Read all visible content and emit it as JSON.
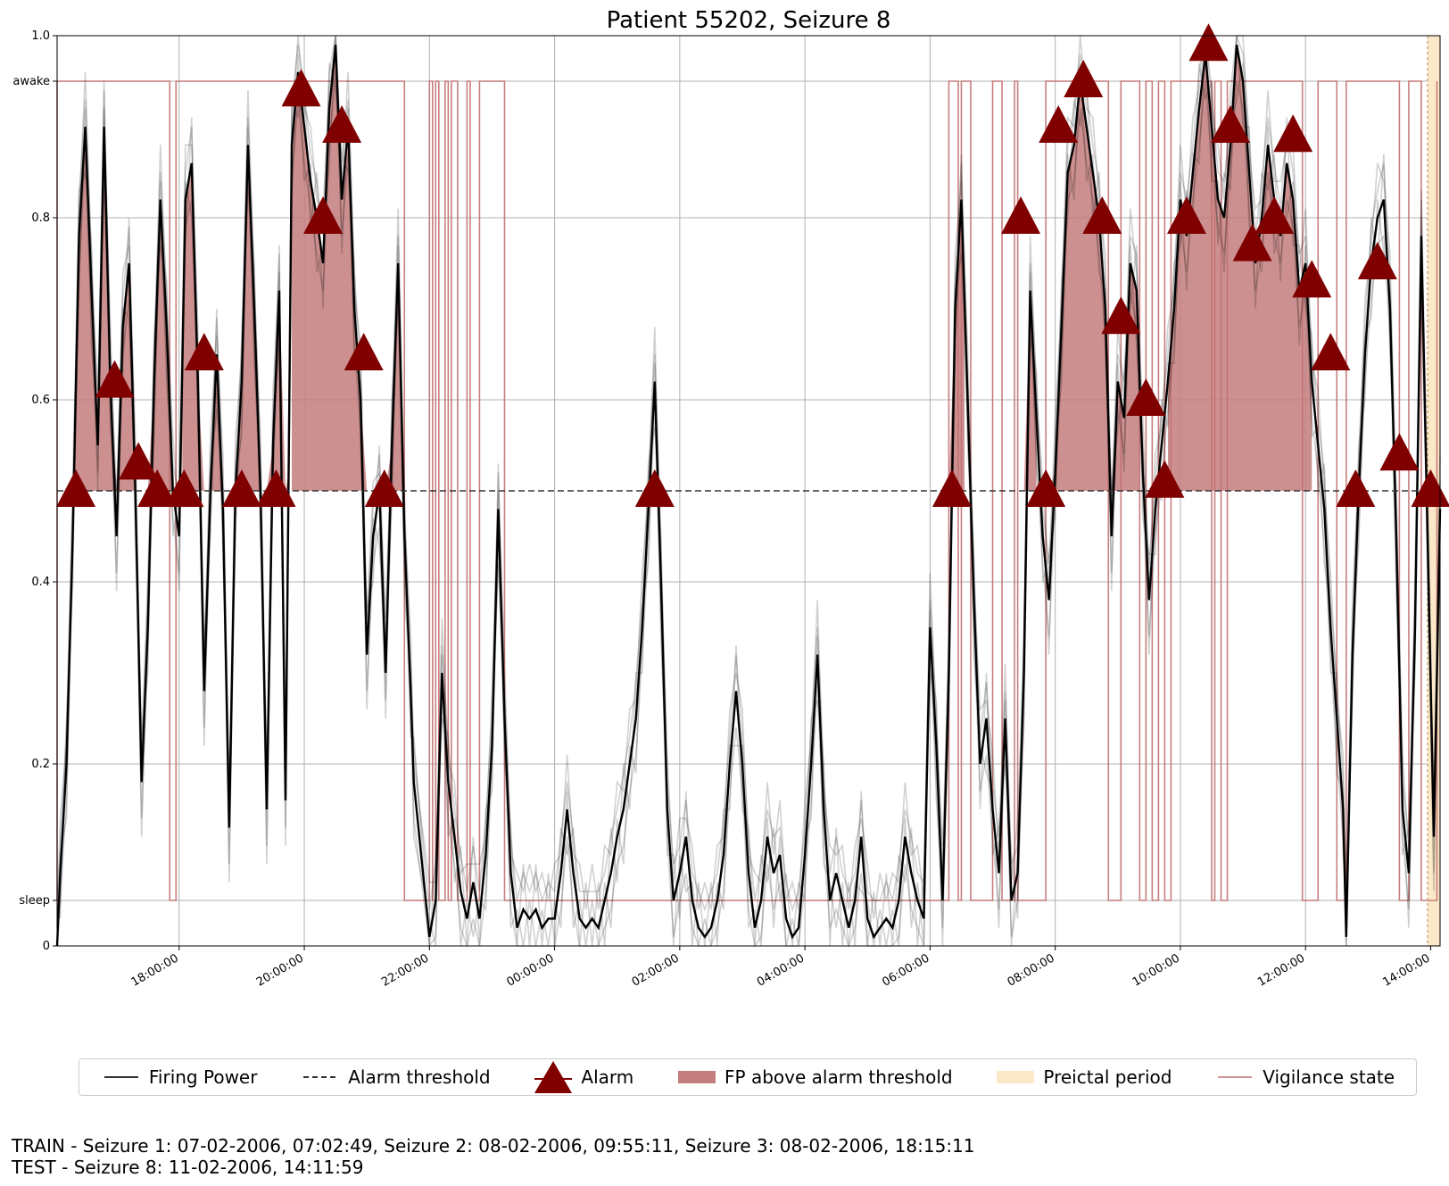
{
  "chart_data": {
    "type": "line",
    "title": "Patient 55202, Seizure 8",
    "ylim": [
      0,
      1.0
    ],
    "y_ticks": [
      {
        "value": 0,
        "label": "0"
      },
      {
        "value": 0.2,
        "label": "0.2"
      },
      {
        "value": 0.4,
        "label": "0.4"
      },
      {
        "value": 0.6,
        "label": "0.6"
      },
      {
        "value": 0.8,
        "label": "0.8"
      },
      {
        "value": 1.0,
        "label": "1.0"
      }
    ],
    "vigilance_ticks": [
      {
        "value": 0.05,
        "label": "sleep"
      },
      {
        "value": 0.95,
        "label": "awake"
      }
    ],
    "x_range_hours": [
      16.05,
      38.15
    ],
    "x_ticks": [
      {
        "hour": 18,
        "label": "18:00:00"
      },
      {
        "hour": 20,
        "label": "20:00:00"
      },
      {
        "hour": 22,
        "label": "22:00:00"
      },
      {
        "hour": 24,
        "label": "00:00:00"
      },
      {
        "hour": 26,
        "label": "02:00:00"
      },
      {
        "hour": 28,
        "label": "04:00:00"
      },
      {
        "hour": 30,
        "label": "06:00:00"
      },
      {
        "hour": 32,
        "label": "08:00:00"
      },
      {
        "hour": 34,
        "label": "10:00:00"
      },
      {
        "hour": 36,
        "label": "12:00:00"
      },
      {
        "hour": 38,
        "label": "14:00:00"
      }
    ],
    "grid": true,
    "alarm_threshold": 0.5,
    "preictal_period_hours": [
      37.95,
      38.15
    ],
    "firing_power": [
      [
        16.05,
        0.0
      ],
      [
        16.1,
        0.08
      ],
      [
        16.2,
        0.2
      ],
      [
        16.3,
        0.45
      ],
      [
        16.4,
        0.78
      ],
      [
        16.5,
        0.9
      ],
      [
        16.6,
        0.72
      ],
      [
        16.7,
        0.55
      ],
      [
        16.8,
        0.9
      ],
      [
        16.9,
        0.62
      ],
      [
        17.0,
        0.45
      ],
      [
        17.1,
        0.68
      ],
      [
        17.2,
        0.75
      ],
      [
        17.3,
        0.5
      ],
      [
        17.4,
        0.18
      ],
      [
        17.5,
        0.35
      ],
      [
        17.6,
        0.62
      ],
      [
        17.7,
        0.82
      ],
      [
        17.8,
        0.68
      ],
      [
        17.9,
        0.5
      ],
      [
        18.0,
        0.45
      ],
      [
        18.1,
        0.82
      ],
      [
        18.2,
        0.86
      ],
      [
        18.3,
        0.62
      ],
      [
        18.4,
        0.28
      ],
      [
        18.5,
        0.5
      ],
      [
        18.6,
        0.65
      ],
      [
        18.7,
        0.48
      ],
      [
        18.8,
        0.13
      ],
      [
        18.9,
        0.5
      ],
      [
        19.0,
        0.62
      ],
      [
        19.1,
        0.88
      ],
      [
        19.2,
        0.7
      ],
      [
        19.3,
        0.5
      ],
      [
        19.4,
        0.15
      ],
      [
        19.5,
        0.55
      ],
      [
        19.6,
        0.72
      ],
      [
        19.7,
        0.16
      ],
      [
        19.8,
        0.88
      ],
      [
        19.9,
        0.96
      ],
      [
        20.0,
        0.9
      ],
      [
        20.1,
        0.84
      ],
      [
        20.2,
        0.8
      ],
      [
        20.3,
        0.75
      ],
      [
        20.4,
        0.92
      ],
      [
        20.5,
        0.99
      ],
      [
        20.6,
        0.82
      ],
      [
        20.7,
        0.9
      ],
      [
        20.8,
        0.7
      ],
      [
        20.9,
        0.6
      ],
      [
        21.0,
        0.32
      ],
      [
        21.1,
        0.45
      ],
      [
        21.2,
        0.5
      ],
      [
        21.3,
        0.3
      ],
      [
        21.4,
        0.55
      ],
      [
        21.5,
        0.75
      ],
      [
        21.6,
        0.45
      ],
      [
        21.7,
        0.28
      ],
      [
        21.75,
        0.18
      ],
      [
        22.0,
        0.01
      ],
      [
        22.1,
        0.05
      ],
      [
        22.2,
        0.3
      ],
      [
        22.3,
        0.18
      ],
      [
        22.4,
        0.12
      ],
      [
        22.5,
        0.06
      ],
      [
        22.6,
        0.03
      ],
      [
        22.7,
        0.07
      ],
      [
        22.8,
        0.03
      ],
      [
        22.9,
        0.1
      ],
      [
        23.0,
        0.22
      ],
      [
        23.1,
        0.48
      ],
      [
        23.2,
        0.25
      ],
      [
        23.3,
        0.08
      ],
      [
        23.4,
        0.02
      ],
      [
        23.5,
        0.04
      ],
      [
        23.6,
        0.03
      ],
      [
        23.7,
        0.04
      ],
      [
        23.8,
        0.02
      ],
      [
        23.9,
        0.03
      ],
      [
        24.0,
        0.03
      ],
      [
        24.1,
        0.08
      ],
      [
        24.2,
        0.15
      ],
      [
        24.3,
        0.08
      ],
      [
        24.4,
        0.03
      ],
      [
        24.5,
        0.02
      ],
      [
        24.6,
        0.03
      ],
      [
        24.7,
        0.02
      ],
      [
        24.8,
        0.05
      ],
      [
        24.9,
        0.08
      ],
      [
        25.0,
        0.12
      ],
      [
        25.1,
        0.15
      ],
      [
        25.2,
        0.2
      ],
      [
        25.3,
        0.25
      ],
      [
        25.4,
        0.35
      ],
      [
        25.5,
        0.48
      ],
      [
        25.6,
        0.62
      ],
      [
        25.7,
        0.4
      ],
      [
        25.8,
        0.15
      ],
      [
        25.9,
        0.05
      ],
      [
        26.0,
        0.08
      ],
      [
        26.1,
        0.12
      ],
      [
        26.2,
        0.05
      ],
      [
        26.3,
        0.02
      ],
      [
        26.4,
        0.01
      ],
      [
        26.5,
        0.02
      ],
      [
        26.6,
        0.05
      ],
      [
        26.7,
        0.1
      ],
      [
        26.8,
        0.2
      ],
      [
        26.9,
        0.28
      ],
      [
        27.0,
        0.2
      ],
      [
        27.1,
        0.08
      ],
      [
        27.2,
        0.02
      ],
      [
        27.3,
        0.05
      ],
      [
        27.4,
        0.12
      ],
      [
        27.5,
        0.08
      ],
      [
        27.6,
        0.1
      ],
      [
        27.7,
        0.03
      ],
      [
        27.8,
        0.01
      ],
      [
        27.9,
        0.02
      ],
      [
        28.0,
        0.1
      ],
      [
        28.1,
        0.2
      ],
      [
        28.2,
        0.32
      ],
      [
        28.3,
        0.15
      ],
      [
        28.4,
        0.05
      ],
      [
        28.5,
        0.08
      ],
      [
        28.6,
        0.05
      ],
      [
        28.7,
        0.02
      ],
      [
        28.8,
        0.05
      ],
      [
        28.9,
        0.12
      ],
      [
        29.0,
        0.03
      ],
      [
        29.1,
        0.01
      ],
      [
        29.2,
        0.02
      ],
      [
        29.3,
        0.03
      ],
      [
        29.4,
        0.02
      ],
      [
        29.5,
        0.05
      ],
      [
        29.6,
        0.12
      ],
      [
        29.7,
        0.08
      ],
      [
        29.8,
        0.05
      ],
      [
        29.9,
        0.03
      ],
      [
        30.0,
        0.35
      ],
      [
        30.1,
        0.22
      ],
      [
        30.2,
        0.05
      ],
      [
        30.3,
        0.3
      ],
      [
        30.4,
        0.7
      ],
      [
        30.5,
        0.82
      ],
      [
        30.6,
        0.6
      ],
      [
        30.7,
        0.38
      ],
      [
        30.8,
        0.2
      ],
      [
        30.9,
        0.25
      ],
      [
        31.0,
        0.15
      ],
      [
        31.1,
        0.08
      ],
      [
        31.2,
        0.25
      ],
      [
        31.3,
        0.05
      ],
      [
        31.4,
        0.08
      ],
      [
        31.5,
        0.3
      ],
      [
        31.6,
        0.72
      ],
      [
        31.7,
        0.58
      ],
      [
        31.8,
        0.45
      ],
      [
        31.9,
        0.38
      ],
      [
        32.0,
        0.52
      ],
      [
        32.1,
        0.68
      ],
      [
        32.2,
        0.85
      ],
      [
        32.3,
        0.88
      ],
      [
        32.4,
        0.95
      ],
      [
        32.5,
        0.9
      ],
      [
        32.6,
        0.85
      ],
      [
        32.7,
        0.8
      ],
      [
        32.8,
        0.7
      ],
      [
        32.9,
        0.45
      ],
      [
        33.0,
        0.62
      ],
      [
        33.1,
        0.58
      ],
      [
        33.2,
        0.75
      ],
      [
        33.3,
        0.72
      ],
      [
        33.4,
        0.52
      ],
      [
        33.5,
        0.38
      ],
      [
        33.6,
        0.48
      ],
      [
        33.7,
        0.55
      ],
      [
        33.8,
        0.62
      ],
      [
        33.9,
        0.7
      ],
      [
        34.0,
        0.82
      ],
      [
        34.1,
        0.78
      ],
      [
        34.2,
        0.85
      ],
      [
        34.3,
        0.92
      ],
      [
        34.4,
        0.98
      ],
      [
        34.5,
        0.9
      ],
      [
        34.6,
        0.82
      ],
      [
        34.7,
        0.8
      ],
      [
        34.8,
        0.88
      ],
      [
        34.9,
        0.99
      ],
      [
        35.0,
        0.95
      ],
      [
        35.1,
        0.85
      ],
      [
        35.2,
        0.75
      ],
      [
        35.3,
        0.8
      ],
      [
        35.4,
        0.88
      ],
      [
        35.5,
        0.82
      ],
      [
        35.6,
        0.78
      ],
      [
        35.7,
        0.86
      ],
      [
        35.8,
        0.82
      ],
      [
        35.9,
        0.72
      ],
      [
        36.0,
        0.75
      ],
      [
        36.1,
        0.62
      ],
      [
        36.2,
        0.55
      ],
      [
        36.3,
        0.48
      ],
      [
        36.4,
        0.35
      ],
      [
        36.5,
        0.25
      ],
      [
        36.6,
        0.15
      ],
      [
        36.65,
        0.01
      ],
      [
        36.75,
        0.32
      ],
      [
        36.85,
        0.5
      ],
      [
        36.95,
        0.65
      ],
      [
        37.05,
        0.75
      ],
      [
        37.15,
        0.8
      ],
      [
        37.25,
        0.82
      ],
      [
        37.35,
        0.7
      ],
      [
        37.45,
        0.45
      ],
      [
        37.55,
        0.15
      ],
      [
        37.65,
        0.08
      ],
      [
        37.75,
        0.35
      ],
      [
        37.85,
        0.78
      ],
      [
        37.95,
        0.45
      ],
      [
        38.05,
        0.12
      ],
      [
        38.15,
        0.48
      ]
    ],
    "alarms": [
      [
        16.35,
        0.5
      ],
      [
        16.97,
        0.62
      ],
      [
        17.35,
        0.53
      ],
      [
        17.65,
        0.5
      ],
      [
        18.08,
        0.5
      ],
      [
        18.4,
        0.65
      ],
      [
        19.0,
        0.5
      ],
      [
        19.55,
        0.5
      ],
      [
        19.95,
        0.94
      ],
      [
        20.3,
        0.8
      ],
      [
        20.6,
        0.9
      ],
      [
        20.95,
        0.65
      ],
      [
        21.28,
        0.5
      ],
      [
        25.6,
        0.5
      ],
      [
        30.35,
        0.5
      ],
      [
        31.45,
        0.8
      ],
      [
        31.85,
        0.5
      ],
      [
        32.05,
        0.9
      ],
      [
        32.45,
        0.95
      ],
      [
        32.75,
        0.8
      ],
      [
        33.05,
        0.69
      ],
      [
        33.45,
        0.6
      ],
      [
        33.75,
        0.51
      ],
      [
        34.1,
        0.8
      ],
      [
        34.45,
        0.99
      ],
      [
        34.8,
        0.9
      ],
      [
        35.15,
        0.77
      ],
      [
        35.5,
        0.8
      ],
      [
        35.8,
        0.89
      ],
      [
        36.1,
        0.73
      ],
      [
        36.4,
        0.65
      ],
      [
        36.8,
        0.5
      ],
      [
        37.15,
        0.75
      ],
      [
        37.5,
        0.54
      ],
      [
        38.0,
        0.5
      ]
    ],
    "fp_above_threshold_regions": [
      [
        16.32,
        17.95
      ],
      [
        18.05,
        19.75
      ],
      [
        19.8,
        21.85
      ],
      [
        30.3,
        30.55
      ],
      [
        31.35,
        31.7
      ],
      [
        31.8,
        33.35
      ],
      [
        33.5,
        33.65
      ],
      [
        33.8,
        36.1
      ]
    ],
    "vigilance_state": [
      [
        16.05,
        0.05
      ],
      [
        16.05,
        0.95
      ],
      [
        17.85,
        0.95
      ],
      [
        17.85,
        0.05
      ],
      [
        17.95,
        0.05
      ],
      [
        17.95,
        0.95
      ],
      [
        21.6,
        0.95
      ],
      [
        21.6,
        0.05
      ],
      [
        22.0,
        0.05
      ],
      [
        22.0,
        0.95
      ],
      [
        22.05,
        0.95
      ],
      [
        22.05,
        0.05
      ],
      [
        22.1,
        0.05
      ],
      [
        22.1,
        0.95
      ],
      [
        22.15,
        0.95
      ],
      [
        22.15,
        0.05
      ],
      [
        22.25,
        0.05
      ],
      [
        22.25,
        0.95
      ],
      [
        22.3,
        0.95
      ],
      [
        22.3,
        0.05
      ],
      [
        22.35,
        0.05
      ],
      [
        22.35,
        0.95
      ],
      [
        22.45,
        0.95
      ],
      [
        22.45,
        0.05
      ],
      [
        22.6,
        0.05
      ],
      [
        22.6,
        0.95
      ],
      [
        22.65,
        0.95
      ],
      [
        22.65,
        0.05
      ],
      [
        22.8,
        0.05
      ],
      [
        22.8,
        0.95
      ],
      [
        23.2,
        0.95
      ],
      [
        23.2,
        0.05
      ],
      [
        30.3,
        0.05
      ],
      [
        30.3,
        0.95
      ],
      [
        30.45,
        0.95
      ],
      [
        30.45,
        0.05
      ],
      [
        30.5,
        0.05
      ],
      [
        30.5,
        0.95
      ],
      [
        30.65,
        0.95
      ],
      [
        30.65,
        0.05
      ],
      [
        31.0,
        0.05
      ],
      [
        31.0,
        0.95
      ],
      [
        31.15,
        0.95
      ],
      [
        31.15,
        0.05
      ],
      [
        31.35,
        0.05
      ],
      [
        31.35,
        0.95
      ],
      [
        31.4,
        0.95
      ],
      [
        31.4,
        0.05
      ],
      [
        31.85,
        0.05
      ],
      [
        31.85,
        0.95
      ],
      [
        32.85,
        0.95
      ],
      [
        32.85,
        0.05
      ],
      [
        33.05,
        0.05
      ],
      [
        33.05,
        0.95
      ],
      [
        33.35,
        0.95
      ],
      [
        33.35,
        0.05
      ],
      [
        33.45,
        0.05
      ],
      [
        33.45,
        0.95
      ],
      [
        33.55,
        0.95
      ],
      [
        33.55,
        0.05
      ],
      [
        33.65,
        0.05
      ],
      [
        33.65,
        0.95
      ],
      [
        33.75,
        0.95
      ],
      [
        33.75,
        0.05
      ],
      [
        33.85,
        0.05
      ],
      [
        33.85,
        0.95
      ],
      [
        34.5,
        0.95
      ],
      [
        34.5,
        0.05
      ],
      [
        34.55,
        0.05
      ],
      [
        34.55,
        0.95
      ],
      [
        34.65,
        0.95
      ],
      [
        34.65,
        0.05
      ],
      [
        34.75,
        0.05
      ],
      [
        34.75,
        0.95
      ],
      [
        35.95,
        0.95
      ],
      [
        35.95,
        0.05
      ],
      [
        36.2,
        0.05
      ],
      [
        36.2,
        0.95
      ],
      [
        36.5,
        0.95
      ],
      [
        36.5,
        0.05
      ],
      [
        36.65,
        0.05
      ],
      [
        36.65,
        0.95
      ],
      [
        37.5,
        0.95
      ],
      [
        37.5,
        0.05
      ],
      [
        37.65,
        0.05
      ],
      [
        37.65,
        0.95
      ],
      [
        37.85,
        0.95
      ],
      [
        37.85,
        0.05
      ],
      [
        38.1,
        0.05
      ],
      [
        38.1,
        0.95
      ]
    ],
    "colors": {
      "firing_power": "#000000",
      "threshold": "#333333",
      "alarm": "#800000",
      "fp_fill": "#c47d7d",
      "preictal": "#fbe8c8",
      "vigilance": "#c27070",
      "grid": "#b0b0b0"
    }
  },
  "legend": [
    {
      "label": "Firing Power",
      "icon": "solid-line"
    },
    {
      "label": "Alarm threshold",
      "icon": "dashed-line"
    },
    {
      "label": "Alarm",
      "icon": "triangle-marker"
    },
    {
      "label": "FP above alarm threshold",
      "icon": "filled-rect"
    },
    {
      "label": "Preictal period",
      "icon": "filled-rect"
    },
    {
      "label": "Vigilance state",
      "icon": "thin-line"
    }
  ],
  "footer": {
    "train_line": "TRAIN - Seizure 1: 07-02-2006, 07:02:49, Seizure 2: 08-02-2006, 09:55:11, Seizure 3: 08-02-2006, 18:15:11",
    "test_line": "TEST - Seizure 8: 11-02-2006, 14:11:59"
  }
}
